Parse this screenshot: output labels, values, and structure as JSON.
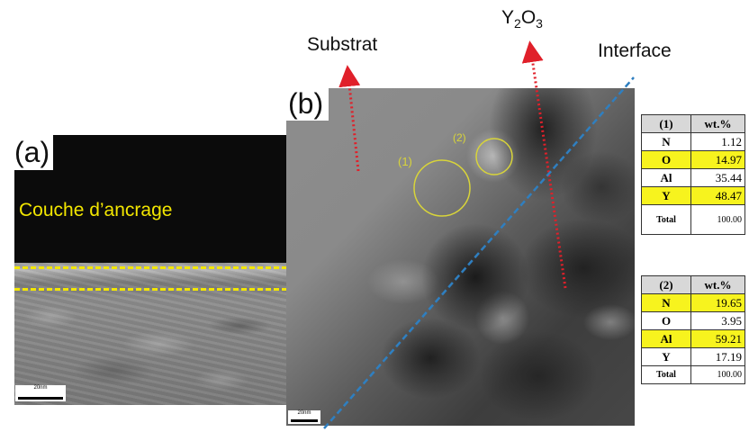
{
  "panel_a": {
    "label": "(a)",
    "layer_label": "Couche d’ancrage",
    "scale_text": "20nm"
  },
  "panel_b": {
    "label": "(b)",
    "region_1": "(1)",
    "region_2": "(2)",
    "scale_text": "20nm"
  },
  "annotations": {
    "substrat": "Substrat",
    "y2o3_base": "Y",
    "y2o3_sub1": "2",
    "y2o3_mid": "O",
    "y2o3_sub2": "3",
    "interface": "Interface"
  },
  "colors": {
    "highlight": "#f7f31e",
    "dashed_layer": "#f2e600",
    "interface_line": "#2f7fc0",
    "arrow": "#e0202a",
    "circle": "#d8d43a"
  },
  "table_1": {
    "header": [
      "(1)",
      "wt.%"
    ],
    "rows": [
      {
        "el": "N",
        "val": "1.12",
        "hl": false
      },
      {
        "el": "O",
        "val": "14.97",
        "hl": true
      },
      {
        "el": "Al",
        "val": "35.44",
        "hl": false
      },
      {
        "el": "Y",
        "val": "48.47",
        "hl": true
      }
    ],
    "total": [
      "Total",
      "100.00"
    ]
  },
  "table_2": {
    "header": [
      "(2)",
      "wt.%"
    ],
    "rows": [
      {
        "el": "N",
        "val": "19.65",
        "hl": true
      },
      {
        "el": "O",
        "val": "3.95",
        "hl": false
      },
      {
        "el": "Al",
        "val": "59.21",
        "hl": true
      },
      {
        "el": "Y",
        "val": "17.19",
        "hl": false
      }
    ],
    "total": [
      "Total",
      "100.00"
    ]
  }
}
